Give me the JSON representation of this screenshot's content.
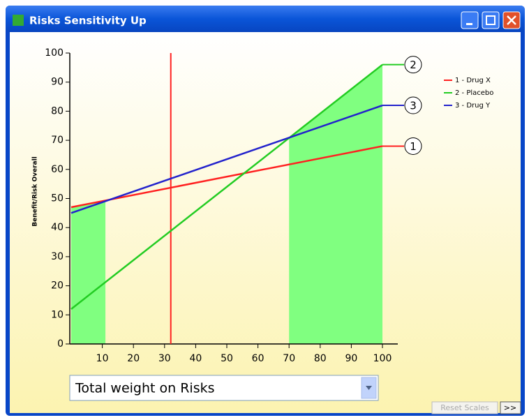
{
  "window": {
    "title": "Risks Sensitivity Up"
  },
  "chart_data": {
    "type": "line",
    "y_label": "Benefit/Risk Overall",
    "x": [
      0,
      100
    ],
    "series": [
      {
        "name": "1 - Drug X",
        "marker_label": "1",
        "color": "#ff2020",
        "values": [
          47,
          68
        ]
      },
      {
        "name": "2 - Placebo",
        "marker_label": "2",
        "color": "#22cc22",
        "values": [
          12,
          96
        ]
      },
      {
        "name": "3 - Drug Y",
        "marker_label": "3",
        "color": "#2222cc",
        "values": [
          45,
          82
        ]
      }
    ],
    "xlim": [
      0,
      100
    ],
    "xticks": [
      10,
      20,
      30,
      40,
      50,
      60,
      70,
      80,
      90,
      100
    ],
    "ylim": [
      0,
      100
    ],
    "yticks": [
      0,
      10,
      20,
      30,
      40,
      50,
      60,
      70,
      80,
      90,
      100
    ],
    "sensitivity_marker": 32,
    "marker_color": "#ff2020",
    "shaded_ranges": [
      [
        0,
        11
      ],
      [
        70,
        100
      ]
    ],
    "shade_color": "#80ff80"
  },
  "controls": {
    "dropdown": "Total weight on Risks",
    "reset_button": "Reset Scales",
    "more_button": ">>"
  }
}
